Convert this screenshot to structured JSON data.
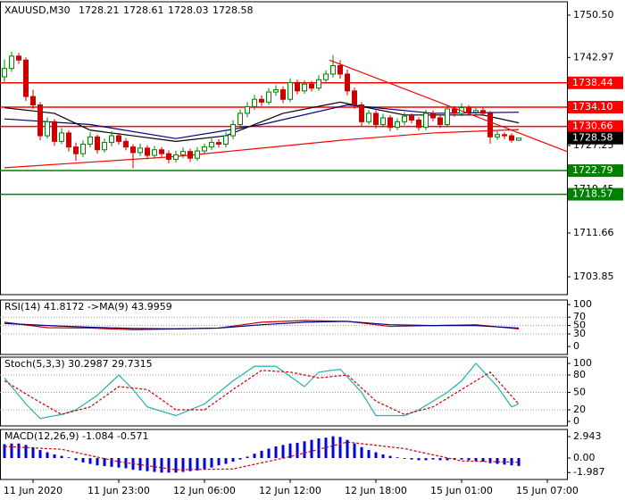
{
  "chart_data": [
    {
      "type": "candlestick",
      "title": "XAUUSD,M30",
      "header_values": [
        1728.21,
        1728.61,
        1728.03,
        1728.58
      ],
      "open": [
        1739.5,
        1741.0,
        1743.2,
        1742.5,
        1736.0,
        1734.5,
        1729.0,
        1731.5,
        1728.0,
        1729.5,
        1727.0,
        1725.8,
        1727.5,
        1728.8,
        1726.5,
        1727.8,
        1729.0,
        1728.0,
        1727.0,
        1726.0,
        1726.8,
        1725.5,
        1726.5,
        1725.8,
        1724.8,
        1725.6,
        1726.2,
        1725.0,
        1726.3,
        1727.0,
        1727.8,
        1727.5,
        1729.0,
        1731.0,
        1733.0,
        1734.2,
        1735.5,
        1735.0,
        1736.8,
        1737.2,
        1735.5,
        1738.5,
        1737.0,
        1738.2,
        1737.5,
        1739.0,
        1740.0,
        1741.5,
        1740.0,
        1737.0,
        1734.5,
        1731.5,
        1733.0,
        1731.0,
        1732.2,
        1730.5,
        1731.5,
        1732.5,
        1731.8,
        1730.5,
        1733.0,
        1732.2,
        1731.0,
        1733.8,
        1733.0,
        1734.0,
        1733.2,
        1733.5,
        1733.0,
        1728.8,
        1729.2,
        1729.0,
        1728.21
      ],
      "high": [
        1742.6,
        1744.0,
        1743.8,
        1743.0,
        1737.2,
        1735.0,
        1732.3,
        1732.0,
        1730.4,
        1730.0,
        1727.8,
        1728.2,
        1729.6,
        1729.2,
        1728.5,
        1729.8,
        1729.5,
        1728.6,
        1727.5,
        1727.6,
        1727.3,
        1727.2,
        1727.0,
        1726.4,
        1726.3,
        1726.9,
        1726.7,
        1727.0,
        1727.6,
        1728.5,
        1728.4,
        1729.7,
        1731.8,
        1733.7,
        1735.0,
        1736.3,
        1736.2,
        1737.5,
        1738.0,
        1737.8,
        1739.2,
        1739.0,
        1738.9,
        1738.8,
        1739.8,
        1740.7,
        1743.4,
        1742.5,
        1740.8,
        1737.6,
        1735.0,
        1733.6,
        1733.5,
        1732.9,
        1732.7,
        1732.1,
        1733.2,
        1733.0,
        1732.3,
        1733.6,
        1733.5,
        1732.8,
        1734.5,
        1734.3,
        1734.8,
        1734.5,
        1734.1,
        1734.0,
        1733.4,
        1729.8,
        1729.6,
        1729.4,
        1728.61
      ],
      "low": [
        1738.6,
        1740.4,
        1741.8,
        1735.2,
        1733.8,
        1728.2,
        1728.5,
        1727.2,
        1727.5,
        1726.2,
        1724.5,
        1725.2,
        1726.9,
        1725.8,
        1726.0,
        1727.1,
        1727.4,
        1726.4,
        1723.2,
        1725.4,
        1724.8,
        1724.9,
        1725.1,
        1724.1,
        1724.2,
        1725.0,
        1724.3,
        1724.5,
        1725.7,
        1726.4,
        1726.9,
        1726.9,
        1728.4,
        1730.4,
        1732.3,
        1733.6,
        1734.3,
        1734.5,
        1736.1,
        1734.8,
        1735.0,
        1736.4,
        1736.5,
        1736.9,
        1737.0,
        1738.4,
        1739.4,
        1739.2,
        1736.2,
        1733.8,
        1730.7,
        1731.0,
        1730.3,
        1730.5,
        1729.8,
        1730.0,
        1730.9,
        1731.2,
        1729.9,
        1730.0,
        1731.6,
        1730.4,
        1730.5,
        1732.4,
        1732.5,
        1732.7,
        1732.8,
        1732.5,
        1727.6,
        1728.3,
        1728.4,
        1727.8,
        1728.03
      ],
      "close": [
        1741.0,
        1743.2,
        1742.5,
        1736.0,
        1734.5,
        1729.0,
        1731.5,
        1728.0,
        1729.5,
        1727.0,
        1725.8,
        1727.5,
        1728.8,
        1726.5,
        1727.8,
        1729.0,
        1728.0,
        1727.0,
        1726.0,
        1726.8,
        1725.5,
        1726.5,
        1725.8,
        1724.8,
        1725.6,
        1726.2,
        1725.0,
        1726.3,
        1727.0,
        1727.8,
        1727.5,
        1729.0,
        1731.0,
        1733.0,
        1734.2,
        1735.5,
        1735.0,
        1736.8,
        1737.2,
        1735.5,
        1738.5,
        1737.0,
        1738.2,
        1737.5,
        1739.0,
        1740.0,
        1741.5,
        1740.0,
        1737.0,
        1734.5,
        1731.5,
        1733.0,
        1731.0,
        1732.2,
        1730.5,
        1731.5,
        1732.5,
        1731.8,
        1730.5,
        1733.0,
        1732.2,
        1731.0,
        1733.8,
        1733.0,
        1734.0,
        1733.2,
        1733.5,
        1733.0,
        1728.8,
        1729.2,
        1729.0,
        1728.2,
        1728.58
      ],
      "up_color": "#008000",
      "down_color": "#cc0000",
      "ylim": [
        1700.67,
        1752.89
      ],
      "yticks": [
        {
          "value": 1750.5,
          "label": "1750.50"
        },
        1742.97,
        1727.25,
        1719.45,
        1711.66,
        1703.85
      ],
      "xticks": [
        {
          "value": 4,
          "label": "11 Jun 2020"
        },
        {
          "value": 16,
          "label": "11 Jun 23:00"
        },
        {
          "value": 28,
          "label": "12 Jun 06:00"
        },
        {
          "value": 40,
          "label": "12 Jun 12:00"
        },
        {
          "value": 52,
          "label": "12 Jun 18:00"
        },
        {
          "value": 64,
          "label": "15 Jun 01:00"
        },
        {
          "value": 76,
          "label": "15 Jun 07:00"
        }
      ],
      "levels": [
        {
          "value": 1738.44,
          "color": "#ff0000"
        },
        {
          "value": 1734.1,
          "label": "1734.10",
          "color": "#ff0000"
        },
        {
          "value": 1730.66,
          "color": "#ff0000"
        },
        {
          "value": 1722.79,
          "color": "#008000"
        },
        {
          "value": 1718.57,
          "color": "#008000"
        }
      ],
      "current_price": 1728.58,
      "trendline": {
        "color": "#ff0000",
        "x": [
          45.5,
          78.75
        ],
        "values": [
          1742.5,
          1726.2
        ]
      },
      "ma_lines": [
        {
          "color": "#ff0000",
          "x": [
            0,
            12,
            24,
            36,
            48,
            60,
            72
          ],
          "values": [
            1723.3,
            1724.3,
            1725.3,
            1726.8,
            1728.3,
            1729.5,
            1730.1
          ]
        },
        {
          "color": "#000080",
          "x": [
            0,
            12,
            24,
            36,
            48,
            60,
            72
          ],
          "values": [
            1732,
            1731,
            1728.5,
            1731,
            1734.5,
            1733,
            1733.2
          ]
        },
        {
          "color": "#000000",
          "x": [
            0,
            7,
            12,
            18,
            24,
            31,
            39,
            47,
            56,
            67,
            72
          ],
          "values": [
            1734,
            1733,
            1730,
            1729,
            1728,
            1729,
            1733,
            1735,
            1732.7,
            1732.7,
            1731.3
          ]
        }
      ]
    },
    {
      "type": "line",
      "title": "RSI(14) 41.8172 ->MA(9) 43.9959",
      "ylim": [
        -19,
        111
      ],
      "yticks": [
        100,
        70,
        50,
        30,
        0
      ],
      "dotted_levels": [
        70,
        50,
        30
      ],
      "series": [
        {
          "color": "#cc0000",
          "x": [
            0,
            6,
            12,
            18,
            24,
            30,
            36,
            42,
            48,
            54,
            60,
            66,
            72
          ],
          "values": [
            58,
            45,
            44,
            40,
            42,
            44,
            58,
            62,
            60,
            48,
            50,
            52,
            41.8172
          ]
        },
        {
          "color": "#000080",
          "x": [
            0,
            6,
            12,
            18,
            24,
            30,
            36,
            42,
            48,
            54,
            60,
            66,
            72
          ],
          "values": [
            55,
            50,
            46,
            43,
            42,
            44,
            52,
            58,
            60,
            52,
            50,
            50,
            43.9959
          ]
        }
      ]
    },
    {
      "type": "line",
      "title": "Stoch(5,3,3) 30.2987 29.7315",
      "ylim": [
        -7.7,
        110.8
      ],
      "yticks": [
        100,
        80,
        50,
        20,
        0
      ],
      "dotted_levels": [
        80,
        50,
        20
      ],
      "series": [
        {
          "color": "#20b2aa",
          "x": [
            0,
            3,
            5,
            8,
            10,
            13,
            16,
            18,
            20,
            24,
            28,
            32,
            35,
            38,
            42,
            44,
            47,
            50,
            52,
            56,
            58,
            62,
            64,
            66,
            69,
            71,
            72
          ],
          "values": [
            75,
            30,
            5,
            12,
            20,
            45,
            80,
            55,
            25,
            10,
            30,
            70,
            95,
            95,
            60,
            85,
            90,
            50,
            10,
            10,
            20,
            50,
            70,
            100,
            60,
            25,
            30.2987
          ]
        },
        {
          "color": "#cc0000",
          "dash": true,
          "x": [
            0,
            4,
            8,
            12,
            16,
            20,
            24,
            28,
            32,
            36,
            40,
            44,
            48,
            52,
            56,
            60,
            64,
            68,
            72
          ],
          "values": [
            70,
            40,
            12,
            25,
            60,
            55,
            20,
            20,
            55,
            88,
            85,
            75,
            80,
            35,
            12,
            25,
            55,
            85,
            29.7315
          ]
        }
      ]
    },
    {
      "type": "macd",
      "title": "MACD(12,26,9) -1.084 -0.571",
      "ylim": [
        -2.94,
        3.93
      ],
      "yticks": [
        2.943,
        {
          "value": 0,
          "label": "0.00"
        },
        -1.987
      ],
      "color": "#0000dd",
      "values": [
        1.9,
        2.0,
        2.0,
        1.8,
        1.5,
        1.1,
        0.8,
        0.5,
        0.3,
        0.1,
        -0.3,
        -0.6,
        -0.8,
        -1.0,
        -1.1,
        -1.2,
        -1.3,
        -1.4,
        -1.6,
        -1.7,
        -1.8,
        -1.9,
        -2.0,
        -2.0,
        -2.0,
        -1.9,
        -1.8,
        -1.7,
        -1.5,
        -1.3,
        -1.0,
        -0.8,
        -0.5,
        -0.2,
        0.2,
        0.6,
        1.0,
        1.3,
        1.6,
        1.8,
        2.0,
        2.1,
        2.3,
        2.5,
        2.7,
        2.8,
        3.0,
        2.9,
        2.5,
        2.0,
        1.5,
        1.1,
        0.8,
        0.5,
        0.3,
        0.1,
        -0.1,
        -0.2,
        -0.3,
        -0.3,
        -0.2,
        -0.3,
        -0.3,
        -0.2,
        -0.2,
        -0.3,
        -0.4,
        -0.5,
        -0.7,
        -0.8,
        -0.9,
        -1.0,
        -1.084
      ],
      "signal": {
        "color": "#cc0000",
        "dash": true,
        "x": [
          0,
          8,
          16,
          24,
          32,
          40,
          48,
          56,
          64,
          72
        ],
        "values": [
          1.6,
          1.2,
          -0.5,
          -1.6,
          -1.5,
          0.2,
          2.2,
          1.3,
          -0.4,
          -0.571
        ]
      }
    }
  ]
}
